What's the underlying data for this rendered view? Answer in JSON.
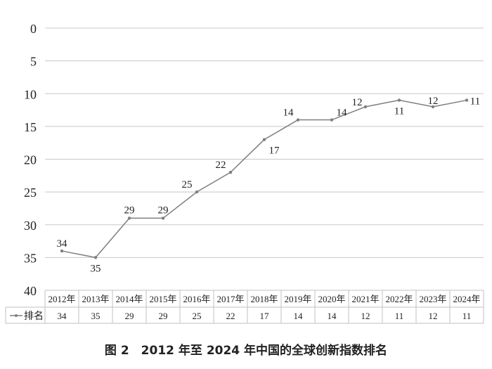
{
  "chart_data": {
    "type": "line",
    "categories": [
      "2012年",
      "2013年",
      "2014年",
      "2015年",
      "2016年",
      "2017年",
      "2018年",
      "2019年",
      "2020年",
      "2021年",
      "2022年",
      "2023年",
      "2024年"
    ],
    "series": [
      {
        "name": "排名",
        "values": [
          34,
          35,
          29,
          29,
          25,
          22,
          17,
          14,
          14,
          12,
          11,
          12,
          11
        ]
      }
    ],
    "ylim": [
      0,
      40
    ],
    "y_inverted": true,
    "yticks": [
      "0",
      "5",
      "10",
      "15",
      "20",
      "25",
      "30",
      "35",
      "40"
    ],
    "grid": true,
    "data_table": true,
    "line_color": "#7f7f7f",
    "title": "图 2　2012 年至 2024 年中国的全球创新指数排名"
  }
}
